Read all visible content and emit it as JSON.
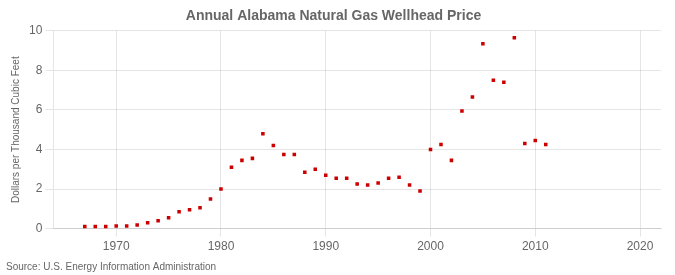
{
  "chart_data": {
    "type": "scatter",
    "title": "Annual Alabama Natural Gas Wellhead Price",
    "ylabel": "Dollars per Thousand Cubic Feet",
    "annotation": "Source: U.S. Energy Information Administration",
    "x": [
      1967,
      1968,
      1969,
      1970,
      1971,
      1972,
      1973,
      1974,
      1975,
      1976,
      1977,
      1978,
      1979,
      1980,
      1981,
      1982,
      1983,
      1984,
      1985,
      1986,
      1987,
      1988,
      1989,
      1990,
      1991,
      1992,
      1993,
      1994,
      1995,
      1996,
      1997,
      1998,
      1999,
      2000,
      2001,
      2002,
      2003,
      2004,
      2005,
      2006,
      2007,
      2008,
      2009,
      2010,
      2011
    ],
    "values": [
      0.1,
      0.1,
      0.1,
      0.13,
      0.13,
      0.18,
      0.3,
      0.4,
      0.55,
      0.85,
      0.95,
      1.05,
      1.5,
      2.0,
      3.1,
      3.45,
      3.55,
      4.8,
      4.2,
      3.75,
      3.75,
      2.85,
      3.0,
      2.7,
      2.55,
      2.55,
      2.25,
      2.2,
      2.3,
      2.55,
      2.6,
      2.2,
      1.9,
      4.0,
      4.25,
      3.45,
      5.95,
      6.65,
      9.35,
      7.5,
      7.4,
      9.65,
      4.3,
      4.45,
      4.25
    ],
    "color": "#cc0000",
    "marker": "square",
    "xlim": [
      1964,
      2022
    ],
    "ylim": [
      0,
      10
    ],
    "xticks": [
      1970,
      1980,
      1990,
      2000,
      2010,
      2020
    ],
    "yticks": [
      0,
      2,
      4,
      6,
      8,
      10
    ],
    "grid": true
  }
}
